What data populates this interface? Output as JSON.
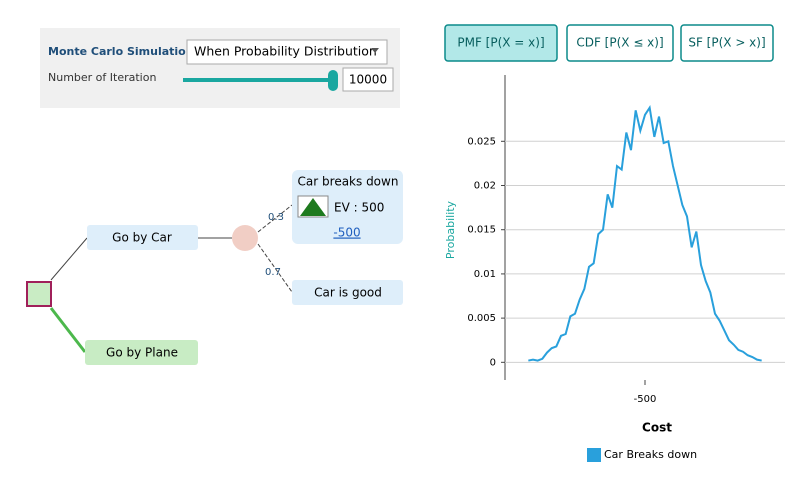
{
  "controls": {
    "label": "Monte Carlo Simulation",
    "dropdown": "When Probability Distribution",
    "iteration_label": "Number of Iteration",
    "iterations": 10000
  },
  "buttons": [
    "PMF [P(X = x)]",
    "CDF [P(X ≤ x)]",
    "SF [P(X > x)]"
  ],
  "tree": {
    "nodes": [
      "Go by Car",
      "Go by Plane",
      "Car breaks down",
      "Car is good"
    ],
    "probabilities": [
      0.3,
      0.7
    ],
    "ev": "EV : 500",
    "payoff": -500
  },
  "chart_data": {
    "type": "line",
    "x_label": "Cost",
    "y_label": "Probability",
    "x": [
      -1000,
      -980,
      -960,
      -940,
      -920,
      -900,
      -880,
      -860,
      -840,
      -820,
      -800,
      -780,
      -760,
      -740,
      -720,
      -700,
      -680,
      -660,
      -640,
      -620,
      -600,
      -580,
      -560,
      -540,
      -520,
      -500,
      -480,
      -460,
      -440,
      -420,
      -400,
      -380,
      -360,
      -340,
      -320,
      -300,
      -280,
      -260,
      -240,
      -220,
      -200,
      -180,
      -160,
      -140,
      -120,
      -100,
      -80,
      -60,
      -40,
      -20,
      0
    ],
    "series": [
      {
        "name": "Car Breaks down",
        "color": "#29a0dc",
        "values": [
          0.0002,
          0.0003,
          0.0002,
          0.0004,
          0.0011,
          0.0016,
          0.0018,
          0.003,
          0.0032,
          0.0052,
          0.0055,
          0.0071,
          0.0083,
          0.0108,
          0.0112,
          0.0145,
          0.015,
          0.019,
          0.0175,
          0.0222,
          0.0218,
          0.026,
          0.024,
          0.0285,
          0.0262,
          0.028,
          0.0288,
          0.0255,
          0.0278,
          0.0248,
          0.025,
          0.0222,
          0.02,
          0.0178,
          0.0165,
          0.013,
          0.0148,
          0.011,
          0.0092,
          0.0079,
          0.0055,
          0.0047,
          0.0036,
          0.0025,
          0.002,
          0.0014,
          0.0012,
          0.0008,
          0.0006,
          0.0003,
          0.0002
        ]
      }
    ],
    "xlim": [
      -1100,
      100
    ],
    "xticks": [
      -500
    ],
    "ylim": [
      -0.002,
      0.0325
    ],
    "yticks": [
      0,
      0.005,
      0.01,
      0.015,
      0.02,
      0.025
    ],
    "grid": true
  }
}
